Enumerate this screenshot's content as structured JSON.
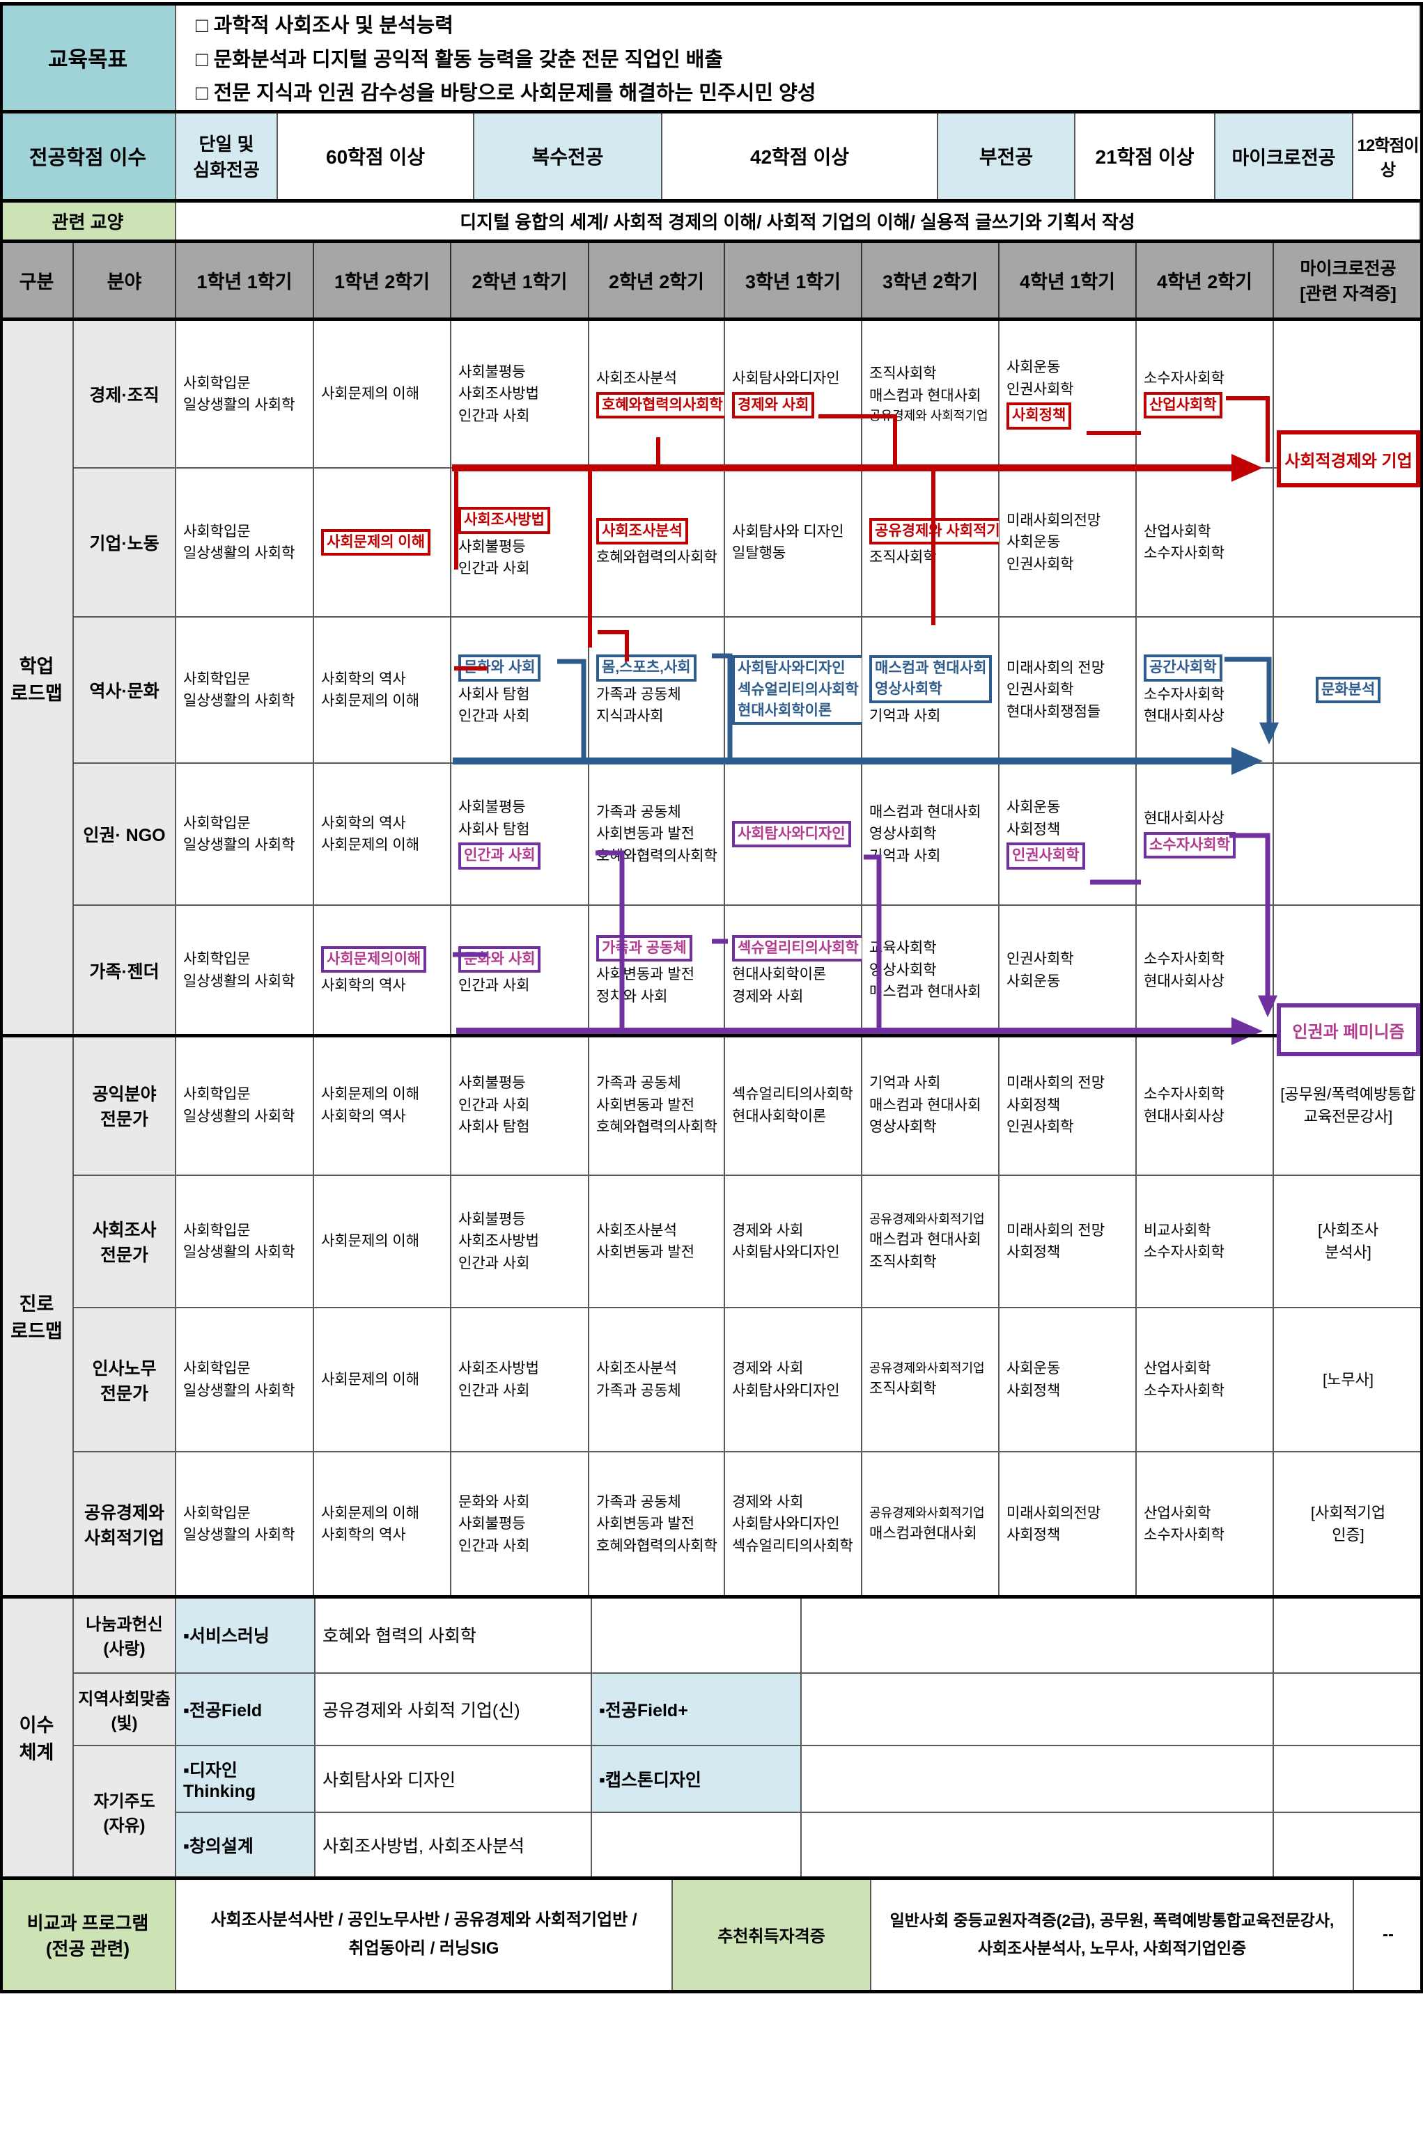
{
  "colors": {
    "accent_red": "#c00000",
    "accent_blue": "#2f5c8f",
    "accent_purple": "#7030a0",
    "accent_purple_text": "#b23a8f",
    "teal": "#9fd3d8",
    "light_blue": "#d5eaf0",
    "green": "#cde3b5",
    "header_gray": "#a6a6a6",
    "label_gray": "#e9e9e9"
  },
  "top": {
    "edu_goal_label": "교육목표",
    "edu_goals": [
      "□ 과학적 사회조사 및 분석능력",
      "□ 문화분석과 디지털 공익적 활동 능력을 갖춘 전문 직업인 배출",
      "□ 전문 지식과 인권 감수성을 바탕으로 사회문제를 해결하는 민주시민 양성"
    ],
    "credit_label": "전공학점 이수",
    "credit_cells": [
      {
        "label": "단일 및\n심화전공",
        "shade": "blue"
      },
      {
        "label": "60학점 이상",
        "shade": "white"
      },
      {
        "label": "복수전공",
        "shade": "blue"
      },
      {
        "label": "42학점 이상",
        "shade": "white"
      },
      {
        "label": "부전공",
        "shade": "blue"
      },
      {
        "label": "21학점 이상",
        "shade": "white"
      },
      {
        "label": "마이크로전공",
        "shade": "blue"
      },
      {
        "label": "12학점이상",
        "shade": "white"
      }
    ],
    "liberal_label": "관련 교양",
    "liberal_text": "디지털 융합의 세계/ 사회적 경제의 이해/ 사회적 기업의 이해/ 실용적 글쓰기와 기획서 작성",
    "columns": [
      "구분",
      "분야",
      "1학년 1학기",
      "1학년 2학기",
      "2학년 1학기",
      "2학년 2학기",
      "3학년 1학기",
      "3학년 2학기",
      "4학년 1학기",
      "4학년 2학기",
      "마이크로전공\n[관련 자격증]"
    ]
  },
  "roadmap_sections": [
    {
      "label": "학업\n로드맵",
      "rows": [
        {
          "field": "경제·조직",
          "cells": [
            [
              {
                "t": "사회학입문"
              },
              {
                "t": "일상생활의 사회학"
              }
            ],
            [
              {
                "t": "사회문제의 이해"
              }
            ],
            [
              {
                "t": "사회불평등"
              },
              {
                "t": "사회조사방법"
              },
              {
                "t": "인간과 사회"
              }
            ],
            [
              {
                "t": "사회조사분석"
              },
              {
                "t": "호혜와협력의사회학",
                "hl": "red"
              }
            ],
            [
              {
                "t": "사회탐사와디자인"
              },
              {
                "t": "경제와 사회",
                "hl": "red"
              }
            ],
            [
              {
                "t": "조직사회학"
              },
              {
                "t": "매스컴과 현대사회"
              },
              {
                "t": "공유경제와 사회적기업",
                "sm": true
              }
            ],
            [
              {
                "t": "사회운동"
              },
              {
                "t": "인권사회학"
              },
              {
                "t": "사회정책",
                "hl": "red"
              }
            ],
            [
              {
                "t": "소수자사회학"
              },
              {
                "t": "산업사회학",
                "hl": "red"
              }
            ],
            []
          ]
        },
        {
          "field": "기업·노동",
          "cells": [
            [
              {
                "t": "사회학입문"
              },
              {
                "t": "일상생활의 사회학"
              }
            ],
            [
              {
                "t": "사회문제의 이해",
                "hl": "red"
              }
            ],
            [
              {
                "t": "사회조사방법",
                "hl": "red"
              },
              {
                "t": "사회불평등"
              },
              {
                "t": "인간과 사회"
              }
            ],
            [
              {
                "t": "사회조사분석",
                "hl": "red"
              },
              {
                "t": "호혜와협력의사회학"
              }
            ],
            [
              {
                "t": "사회탐사와 디자인"
              },
              {
                "t": "일탈행동"
              }
            ],
            [
              {
                "t": "공유경제와 사회적기업",
                "hl": "red",
                "sm": true
              },
              {
                "t": "조직사회학"
              }
            ],
            [
              {
                "t": "미래사회의전망"
              },
              {
                "t": "사회운동"
              },
              {
                "t": "인권사회학"
              }
            ],
            [
              {
                "t": "산업사회학"
              },
              {
                "t": "소수자사회학"
              }
            ],
            []
          ]
        },
        {
          "field": "역사·문화",
          "cells": [
            [
              {
                "t": "사회학입문"
              },
              {
                "t": "일상생활의 사회학"
              }
            ],
            [
              {
                "t": "사회학의 역사"
              },
              {
                "t": "사회문제의 이해"
              }
            ],
            [
              {
                "t": "문화와 사회",
                "hl": "blue"
              },
              {
                "t": "사회사 탐험"
              },
              {
                "t": "인간과 사회"
              }
            ],
            [
              {
                "t": "몸,스포츠,사회",
                "hl": "blue"
              },
              {
                "t": "가족과 공동체"
              },
              {
                "t": "지식과사회"
              }
            ],
            [
              {
                "lines": [
                  "사회탐사와디자인",
                  "섹슈얼리티의사회학",
                  "현대사회학이론"
                ],
                "hl": "blue"
              }
            ],
            [
              {
                "lines": [
                  "매스컴과 현대사회",
                  "영상사회학"
                ],
                "hl": "blue"
              },
              {
                "t": "기억과 사회"
              }
            ],
            [
              {
                "t": "미래사회의 전망"
              },
              {
                "t": "인권사회학"
              },
              {
                "t": "현대사회쟁점들"
              }
            ],
            [
              {
                "t": "공간사회학",
                "hl": "blue"
              },
              {
                "t": "소수자사회학"
              },
              {
                "t": "현대사회사상"
              }
            ],
            [
              {
                "t": "문화분석",
                "hl": "blue"
              }
            ]
          ]
        },
        {
          "field": "인권· NGO",
          "cells": [
            [
              {
                "t": "사회학입문"
              },
              {
                "t": "일상생활의 사회학"
              }
            ],
            [
              {
                "t": "사회학의 역사"
              },
              {
                "t": "사회문제의 이해"
              }
            ],
            [
              {
                "t": "사회불평등"
              },
              {
                "t": "사회사 탐험"
              },
              {
                "t": "인간과 사회",
                "hl": "purple"
              }
            ],
            [
              {
                "t": "가족과 공동체"
              },
              {
                "t": "사회변동과 발전"
              },
              {
                "t": "호혜와협력의사회학"
              }
            ],
            [
              {
                "t": "사회탐사와디자인",
                "hl": "purple"
              }
            ],
            [
              {
                "t": "매스컴과 현대사회"
              },
              {
                "t": "영상사회학"
              },
              {
                "t": "기억과 사회"
              }
            ],
            [
              {
                "t": "사회운동"
              },
              {
                "t": "사회정책"
              },
              {
                "t": "인권사회학",
                "hl": "purple"
              }
            ],
            [
              {
                "t": "현대사회사상"
              },
              {
                "t": "소수자사회학",
                "hl": "purple"
              }
            ],
            []
          ]
        },
        {
          "field": "가족·젠더",
          "cells": [
            [
              {
                "t": "사회학입문"
              },
              {
                "t": "일상생활의 사회학"
              }
            ],
            [
              {
                "t": "사회문제의이해",
                "hl": "purple"
              },
              {
                "t": "사회학의 역사"
              }
            ],
            [
              {
                "t": "문화와 사회",
                "hl": "purple"
              },
              {
                "t": "인간과 사회"
              }
            ],
            [
              {
                "t": "가족과 공동체",
                "hl": "purple"
              },
              {
                "t": "사회변동과 발전"
              },
              {
                "t": "정치와 사회"
              }
            ],
            [
              {
                "t": "섹슈얼리티의사회학",
                "hl": "purple"
              },
              {
                "t": "현대사회학이론"
              },
              {
                "t": "경제와 사회"
              }
            ],
            [
              {
                "t": "교육사회학"
              },
              {
                "t": "영상사회학"
              },
              {
                "t": "매스컴과 현대사회"
              }
            ],
            [
              {
                "t": "인권사회학"
              },
              {
                "t": "사회운동"
              }
            ],
            [
              {
                "t": "소수자사회학"
              },
              {
                "t": "현대사회사상"
              }
            ],
            []
          ]
        }
      ]
    },
    {
      "label": "진로\n로드맵",
      "rows": [
        {
          "field": "공익분야\n전문가",
          "cells": [
            [
              {
                "t": "사회학입문"
              },
              {
                "t": "일상생활의 사회학"
              }
            ],
            [
              {
                "t": "사회문제의 이해"
              },
              {
                "t": "사회학의 역사"
              }
            ],
            [
              {
                "t": "사회불평등"
              },
              {
                "t": "인간과 사회"
              },
              {
                "t": "사회사 탐험"
              }
            ],
            [
              {
                "t": "가족과 공동체"
              },
              {
                "t": "사회변동과 발전"
              },
              {
                "t": "호혜와협력의사회학"
              }
            ],
            [
              {
                "t": "섹슈얼리티의사회학"
              },
              {
                "t": "현대사회학이론"
              }
            ],
            [
              {
                "t": "기억과 사회"
              },
              {
                "t": "매스컴과 현대사회"
              },
              {
                "t": "영상사회학"
              }
            ],
            [
              {
                "t": "미래사회의 전망"
              },
              {
                "t": "사회정책"
              },
              {
                "t": "인권사회학"
              }
            ],
            [
              {
                "t": "소수자사회학"
              },
              {
                "t": "현대사회사상"
              }
            ],
            [
              {
                "lines": [
                  "[공무원/폭력예방통합",
                  "교육전문강사]"
                ]
              }
            ]
          ]
        },
        {
          "field": "사회조사\n전문가",
          "cells": [
            [
              {
                "t": "사회학입문"
              },
              {
                "t": "일상생활의 사회학"
              }
            ],
            [
              {
                "t": "사회문제의 이해"
              }
            ],
            [
              {
                "t": "사회불평등"
              },
              {
                "t": "사회조사방법"
              },
              {
                "t": "인간과 사회"
              }
            ],
            [
              {
                "t": "사회조사분석"
              },
              {
                "t": "사회변동과 발전"
              }
            ],
            [
              {
                "t": "경제와 사회"
              },
              {
                "t": "사회탐사와디자인"
              }
            ],
            [
              {
                "t": "공유경제와사회적기업",
                "sm": true
              },
              {
                "t": "매스컴과 현대사회"
              },
              {
                "t": "조직사회학"
              }
            ],
            [
              {
                "t": "미래사회의 전망"
              },
              {
                "t": "사회정책"
              }
            ],
            [
              {
                "t": "비교사회학"
              },
              {
                "t": "소수자사회학"
              }
            ],
            [
              {
                "lines": [
                  "[사회조사",
                  "분석사]"
                ]
              }
            ]
          ]
        },
        {
          "field": "인사노무\n전문가",
          "cells": [
            [
              {
                "t": "사회학입문"
              },
              {
                "t": "일상생활의 사회학"
              }
            ],
            [
              {
                "t": "사회문제의 이해"
              }
            ],
            [
              {
                "t": "사회조사방법"
              },
              {
                "t": "인간과 사회"
              }
            ],
            [
              {
                "t": "사회조사분석"
              },
              {
                "t": "가족과 공동체"
              }
            ],
            [
              {
                "t": "경제와 사회"
              },
              {
                "t": "사회탐사와디자인"
              }
            ],
            [
              {
                "t": "공유경제와사회적기업",
                "sm": true
              },
              {
                "t": "조직사회학"
              }
            ],
            [
              {
                "t": "사회운동"
              },
              {
                "t": "사회정책"
              }
            ],
            [
              {
                "t": "산업사회학"
              },
              {
                "t": "소수자사회학"
              }
            ],
            [
              {
                "t": "[노무사]"
              }
            ]
          ]
        },
        {
          "field": "공유경제와\n사회적기업",
          "cells": [
            [
              {
                "t": "사회학입문"
              },
              {
                "t": "일상생활의 사회학"
              }
            ],
            [
              {
                "t": "사회문제의 이해"
              },
              {
                "t": "사회학의 역사"
              }
            ],
            [
              {
                "t": "문화와 사회"
              },
              {
                "t": "사회불평등"
              },
              {
                "t": "인간과 사회"
              }
            ],
            [
              {
                "t": "가족과 공동체"
              },
              {
                "t": "사회변동과 발전"
              },
              {
                "t": "호혜와협력의사회학"
              }
            ],
            [
              {
                "t": "경제와 사회"
              },
              {
                "t": "사회탐사와디자인"
              },
              {
                "t": "섹슈얼리티의사회학"
              }
            ],
            [
              {
                "t": "공유경제와사회적기업",
                "sm": true
              },
              {
                "t": "매스컴과현대사회"
              }
            ],
            [
              {
                "t": "미래사회의전망"
              },
              {
                "t": "사회정책"
              }
            ],
            [
              {
                "t": "산업사회학"
              },
              {
                "t": "소수자사회학"
              }
            ],
            [
              {
                "lines": [
                  "[사회적기업",
                  "인증]"
                ]
              }
            ]
          ]
        }
      ]
    }
  ],
  "completion": {
    "label": "이수\n체계",
    "rows": [
      {
        "field": "나눔과헌신\n(사랑)",
        "callout": "▪서비스러닝",
        "desc": "호혜와 협력의 사회학",
        "callout2": ""
      },
      {
        "field": "지역사회맞춤\n(빛)",
        "callout": "▪전공Field",
        "desc": "공유경제와 사회적 기업(신)",
        "callout2": "▪전공Field+"
      },
      {
        "field": "자기주도\n(자유)",
        "field_span": 2,
        "callout": "▪디자인Thinking",
        "desc": "사회탐사와 디자인",
        "callout2": "▪캡스톤디자인"
      },
      {
        "callout": "▪창의설계",
        "desc": "사회조사방법, 사회조사분석",
        "callout2": ""
      }
    ]
  },
  "extracurricular": {
    "label": "비교과 프로그램\n(전공 관련)",
    "programs": "사회조사분석사반 / 공인노무사반 / 공유경제와 사회적기업반 /\n취업동아리 / 러닝SIG",
    "cert_label": "추천취득자격증",
    "certs": "일반사회 중등교원자격증(2급), 공무원, 폭력예방통합교육전문강사,\n사회조사분석사, 노무사, 사회적기업인증",
    "extra": "--"
  },
  "floating_boxes": [
    {
      "label": "사회적경제와 기업",
      "color": "red"
    },
    {
      "label": "인권과 페미니즘",
      "color": "purple"
    }
  ]
}
